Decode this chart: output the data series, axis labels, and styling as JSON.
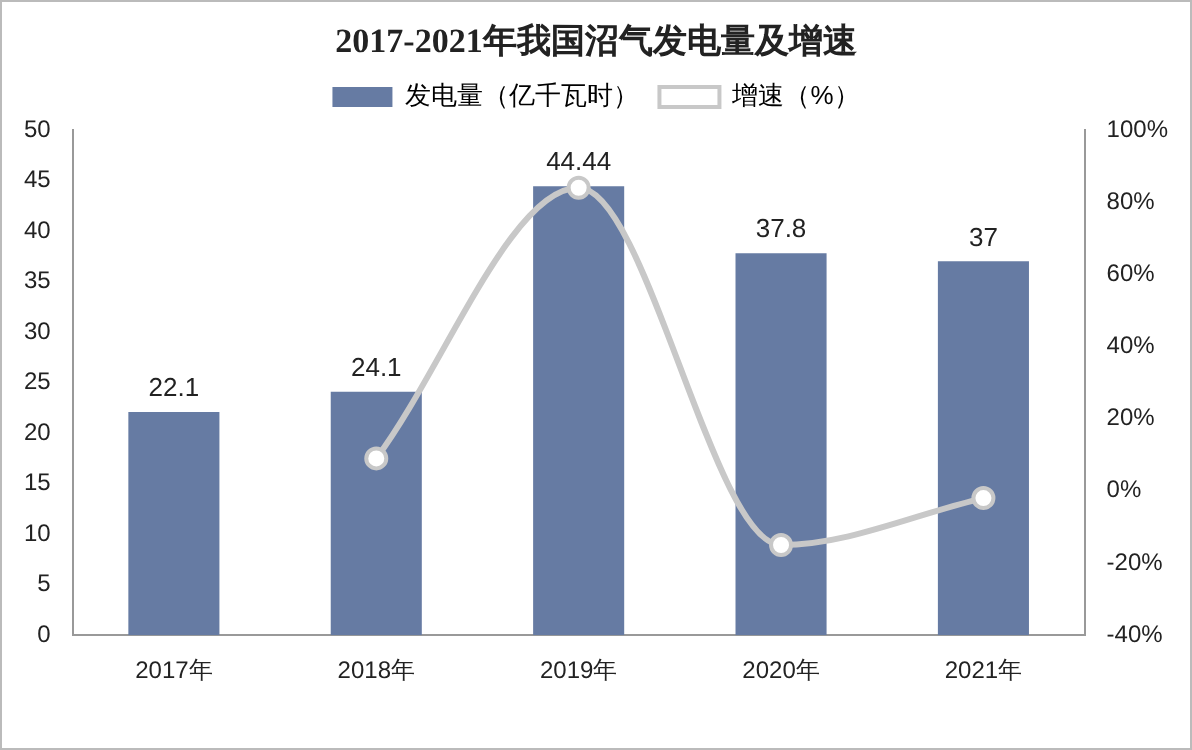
{
  "chart_data": {
    "type": "bar",
    "title": "2017-2021年我国沼气发电量及增速",
    "categories": [
      "2017年",
      "2018年",
      "2019年",
      "2020年",
      "2021年"
    ],
    "series": [
      {
        "name": "发电量（亿千瓦时）",
        "color": "#667ba3",
        "values": [
          22.1,
          24.1,
          44.44,
          37.8,
          37
        ],
        "value_labels": [
          "22.1",
          "24.1",
          "44.44",
          "37.8",
          "37"
        ]
      },
      {
        "name": "增速（%）",
        "type": "line",
        "axis": "y2",
        "color": "#c8c8c8",
        "marker": "circle",
        "values": [
          null,
          9,
          84,
          -15,
          -2
        ]
      }
    ],
    "ylim": [
      0,
      50
    ],
    "yticks": [
      0,
      5,
      10,
      15,
      20,
      25,
      30,
      35,
      40,
      45,
      50
    ],
    "y2lim": [
      -40,
      100
    ],
    "y2ticks": [
      {
        "value": -40,
        "label": "-40%"
      },
      {
        "value": -20,
        "label": "-20%"
      },
      {
        "value": 0,
        "label": "0%"
      },
      {
        "value": 20,
        "label": "20%"
      },
      {
        "value": 40,
        "label": "40%"
      },
      {
        "value": 60,
        "label": "60%"
      },
      {
        "value": 80,
        "label": "80%"
      },
      {
        "value": 100,
        "label": "100%"
      }
    ],
    "grid": false,
    "legend": "top"
  }
}
